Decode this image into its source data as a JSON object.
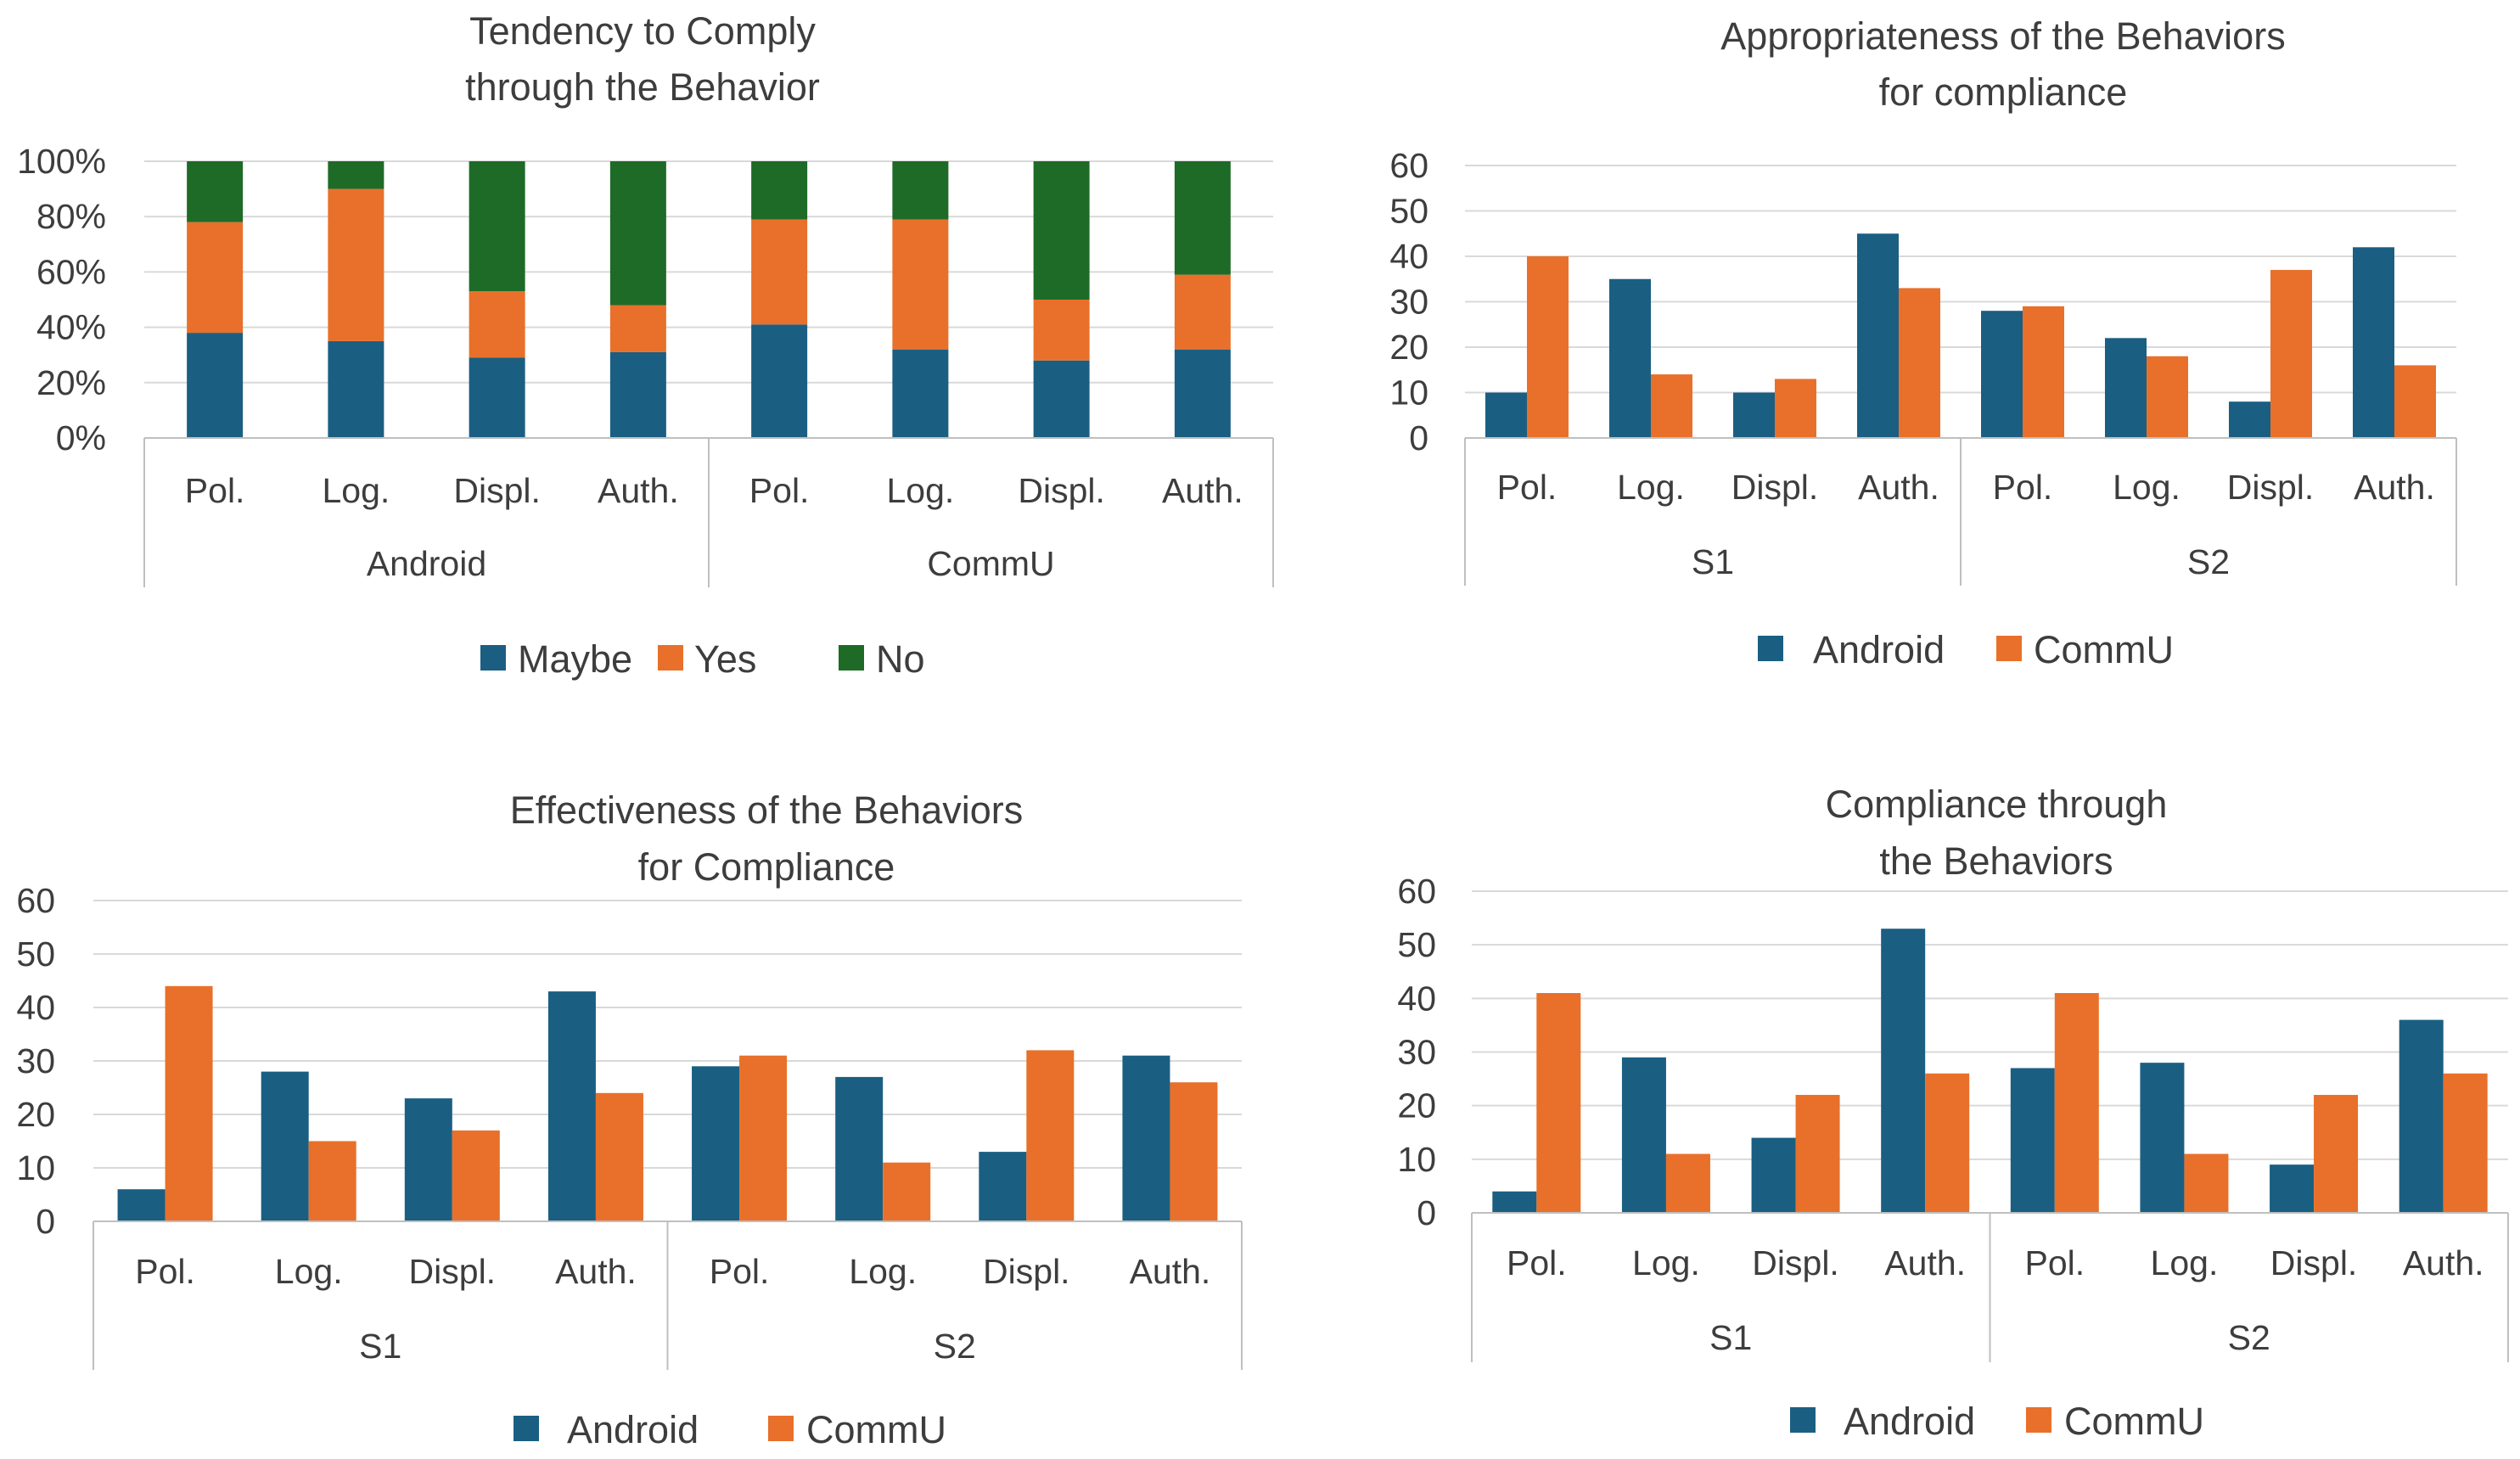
{
  "colors": {
    "blue": "#1a5f82",
    "orange": "#e8702a",
    "green": "#1e6b27",
    "grid": "#d9d9d9",
    "axis": "#bfbfbf",
    "text": "#3d3d3d"
  },
  "chart_data": [
    {
      "type": "bar",
      "stacked": true,
      "title": [
        "Tendency to Comply",
        "through the Behavior"
      ],
      "groups": [
        "Android",
        "CommU"
      ],
      "categories": [
        "Pol.",
        "Log.",
        "Displ.",
        "Auth.",
        "Pol.",
        "Log.",
        "Displ.",
        "Auth."
      ],
      "series": [
        {
          "name": "Maybe",
          "color": "blue",
          "values": [
            38,
            35,
            29,
            31,
            41,
            32,
            28,
            32
          ]
        },
        {
          "name": "Yes",
          "color": "orange",
          "values": [
            40,
            55,
            24,
            17,
            38,
            47,
            22,
            27
          ]
        },
        {
          "name": "No",
          "color": "green",
          "values": [
            22,
            10,
            47,
            52,
            21,
            21,
            50,
            41
          ]
        }
      ],
      "ylim": [
        0,
        100
      ],
      "yticks": [
        "0%",
        "20%",
        "40%",
        "60%",
        "80%",
        "100%"
      ],
      "legend": "bottom"
    },
    {
      "type": "bar",
      "title": [
        "Appropriateness of the Behaviors",
        "for compliance"
      ],
      "groups": [
        "S1",
        "S2"
      ],
      "categories": [
        "Pol.",
        "Log.",
        "Displ.",
        "Auth.",
        "Pol.",
        "Log.",
        "Displ.",
        "Auth."
      ],
      "series": [
        {
          "name": "Android",
          "color": "blue",
          "values": [
            10,
            35,
            10,
            45,
            28,
            22,
            8,
            42
          ]
        },
        {
          "name": "CommU",
          "color": "orange",
          "values": [
            40,
            14,
            13,
            33,
            29,
            18,
            37,
            16
          ]
        }
      ],
      "ylim": [
        0,
        60
      ],
      "yticks": [
        "0",
        "10",
        "20",
        "30",
        "40",
        "50",
        "60"
      ],
      "legend": "bottom"
    },
    {
      "type": "bar",
      "title": [
        "Effectiveness of the Behaviors",
        "for Compliance"
      ],
      "groups": [
        "S1",
        "S2"
      ],
      "categories": [
        "Pol.",
        "Log.",
        "Displ.",
        "Auth.",
        "Pol.",
        "Log.",
        "Displ.",
        "Auth."
      ],
      "series": [
        {
          "name": "Android",
          "color": "blue",
          "values": [
            6,
            28,
            23,
            43,
            29,
            27,
            13,
            31
          ]
        },
        {
          "name": "CommU",
          "color": "orange",
          "values": [
            44,
            15,
            17,
            24,
            31,
            11,
            32,
            26
          ]
        }
      ],
      "ylim": [
        0,
        60
      ],
      "yticks": [
        "0",
        "10",
        "20",
        "30",
        "40",
        "50",
        "60"
      ],
      "legend": "bottom"
    },
    {
      "type": "bar",
      "title": [
        "Compliance through",
        "the Behaviors"
      ],
      "groups": [
        "S1",
        "S2"
      ],
      "categories": [
        "Pol.",
        "Log.",
        "Displ.",
        "Auth.",
        "Pol.",
        "Log.",
        "Displ.",
        "Auth."
      ],
      "series": [
        {
          "name": "Android",
          "color": "blue",
          "values": [
            4,
            29,
            14,
            53,
            27,
            28,
            9,
            36
          ]
        },
        {
          "name": "CommU",
          "color": "orange",
          "values": [
            41,
            11,
            22,
            26,
            41,
            11,
            22,
            26
          ]
        }
      ],
      "ylim": [
        0,
        60
      ],
      "yticks": [
        "0",
        "10",
        "20",
        "30",
        "40",
        "50",
        "60"
      ],
      "legend": "bottom"
    }
  ]
}
